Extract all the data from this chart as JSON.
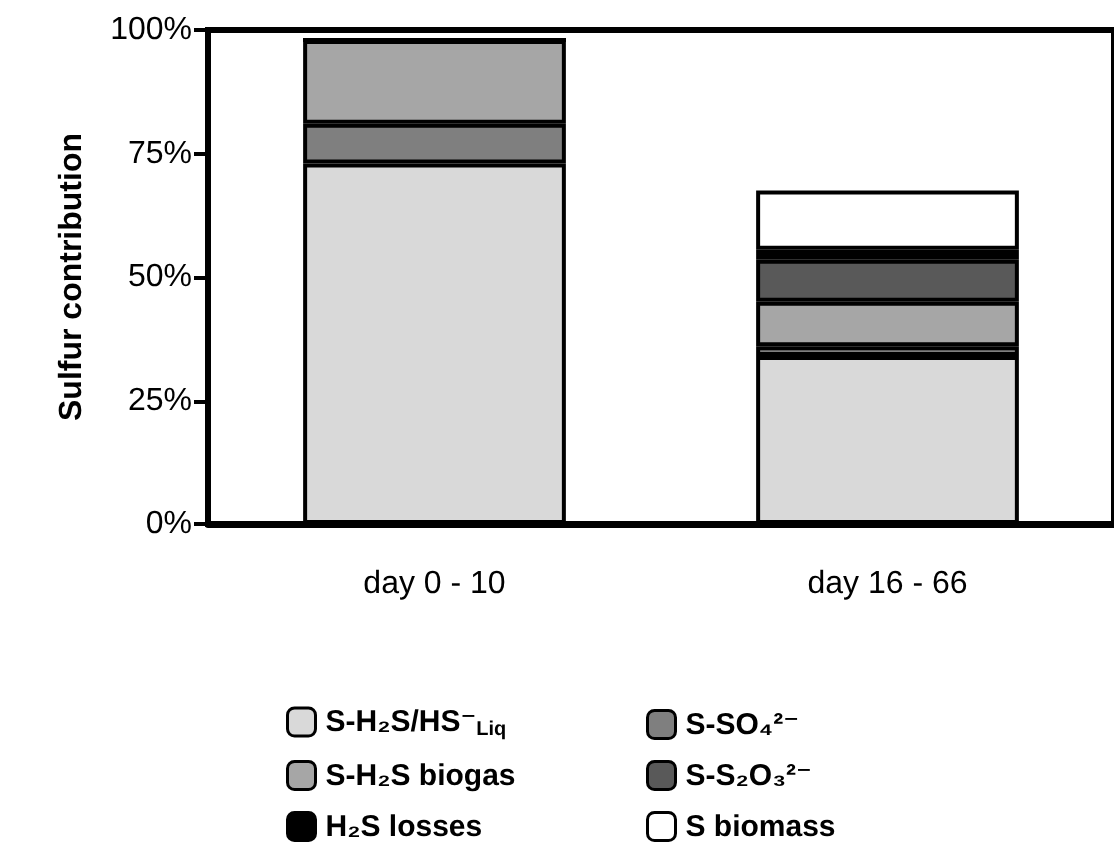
{
  "chart_data": {
    "type": "bar",
    "stacked": true,
    "ylabel": "Sulfur contribution",
    "categories": [
      "day 0 - 10",
      "day 16 - 66"
    ],
    "series": [
      {
        "name": "S-H₂S/HS⁻$_{Liq}$",
        "color": "#d9d9d9",
        "values": [
          73,
          34
        ]
      },
      {
        "name": "S-SO₄²⁻",
        "color": "#7f7f7f",
        "values": [
          8,
          2
        ]
      },
      {
        "name": "S-H₂S biogas",
        "color": "#a6a6a6",
        "values": [
          17,
          9
        ]
      },
      {
        "name": "S-S₂O₃²⁻",
        "color": "#595959",
        "values": [
          0,
          8.5
        ]
      },
      {
        "name": "H₂S losses",
        "color": "#000000",
        "values": [
          0,
          2
        ]
      },
      {
        "name": "S biomass",
        "color": "#ffffff",
        "values": [
          0,
          12
        ]
      }
    ],
    "ylim": [
      0,
      100
    ],
    "yticks": [
      {
        "value": 0,
        "label": "0%"
      },
      {
        "value": 25,
        "label": "25%"
      },
      {
        "value": 50,
        "label": "50%"
      },
      {
        "value": 75,
        "label": "75%"
      },
      {
        "value": 100,
        "label": "100%"
      }
    ],
    "grid": false,
    "legend": "bottom"
  }
}
